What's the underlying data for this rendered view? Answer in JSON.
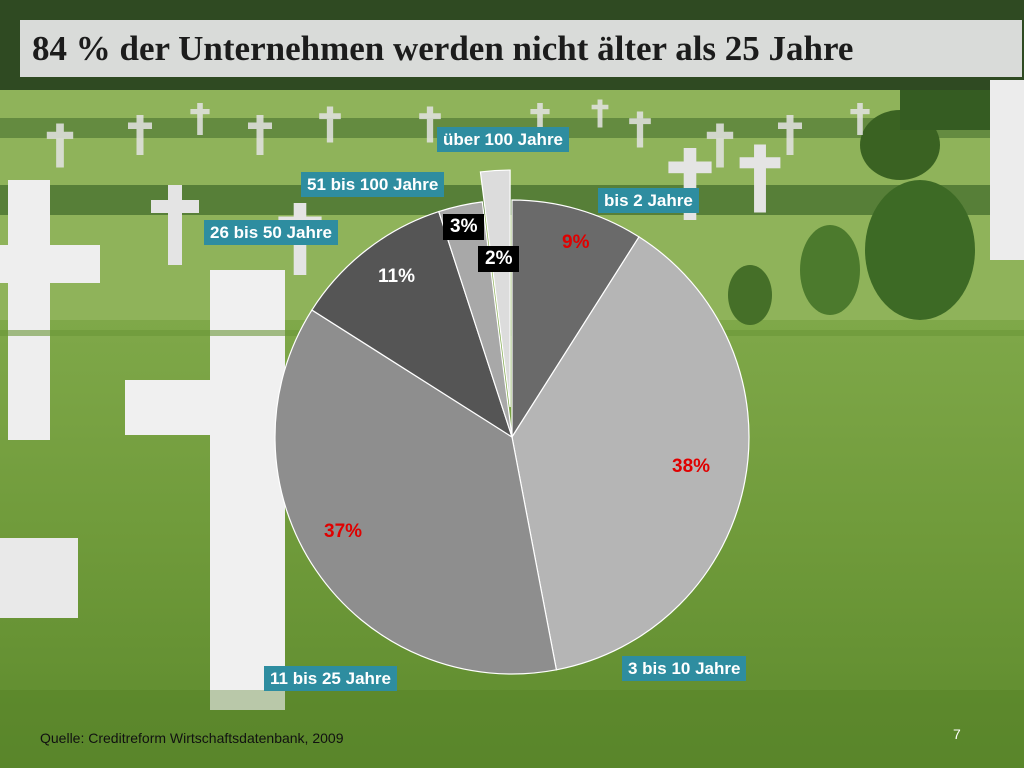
{
  "slide": {
    "title": "84 % der Unternehmen werden nicht älter als 25 Jahre",
    "source": "Quelle: Creditreform Wirtschaftsdatenbank, 2009",
    "page_number": "7"
  },
  "colors": {
    "label_bg": "#2e8da0",
    "pct_red": "#e00000"
  },
  "chart_data": {
    "type": "pie",
    "title": "84 % der Unternehmen werden nicht älter als 25 Jahre",
    "categories": [
      "bis 2 Jahre",
      "3 bis 10 Jahre",
      "11 bis 25 Jahre",
      "26 bis 50 Jahre",
      "51 bis 100 Jahre",
      "über 100 Jahre"
    ],
    "values": [
      9,
      38,
      37,
      11,
      3,
      2
    ],
    "value_labels": [
      "9%",
      "38%",
      "37%",
      "11%",
      "3%",
      "2%"
    ],
    "exploded": [
      "über 100 Jahre"
    ],
    "legend": "none"
  }
}
